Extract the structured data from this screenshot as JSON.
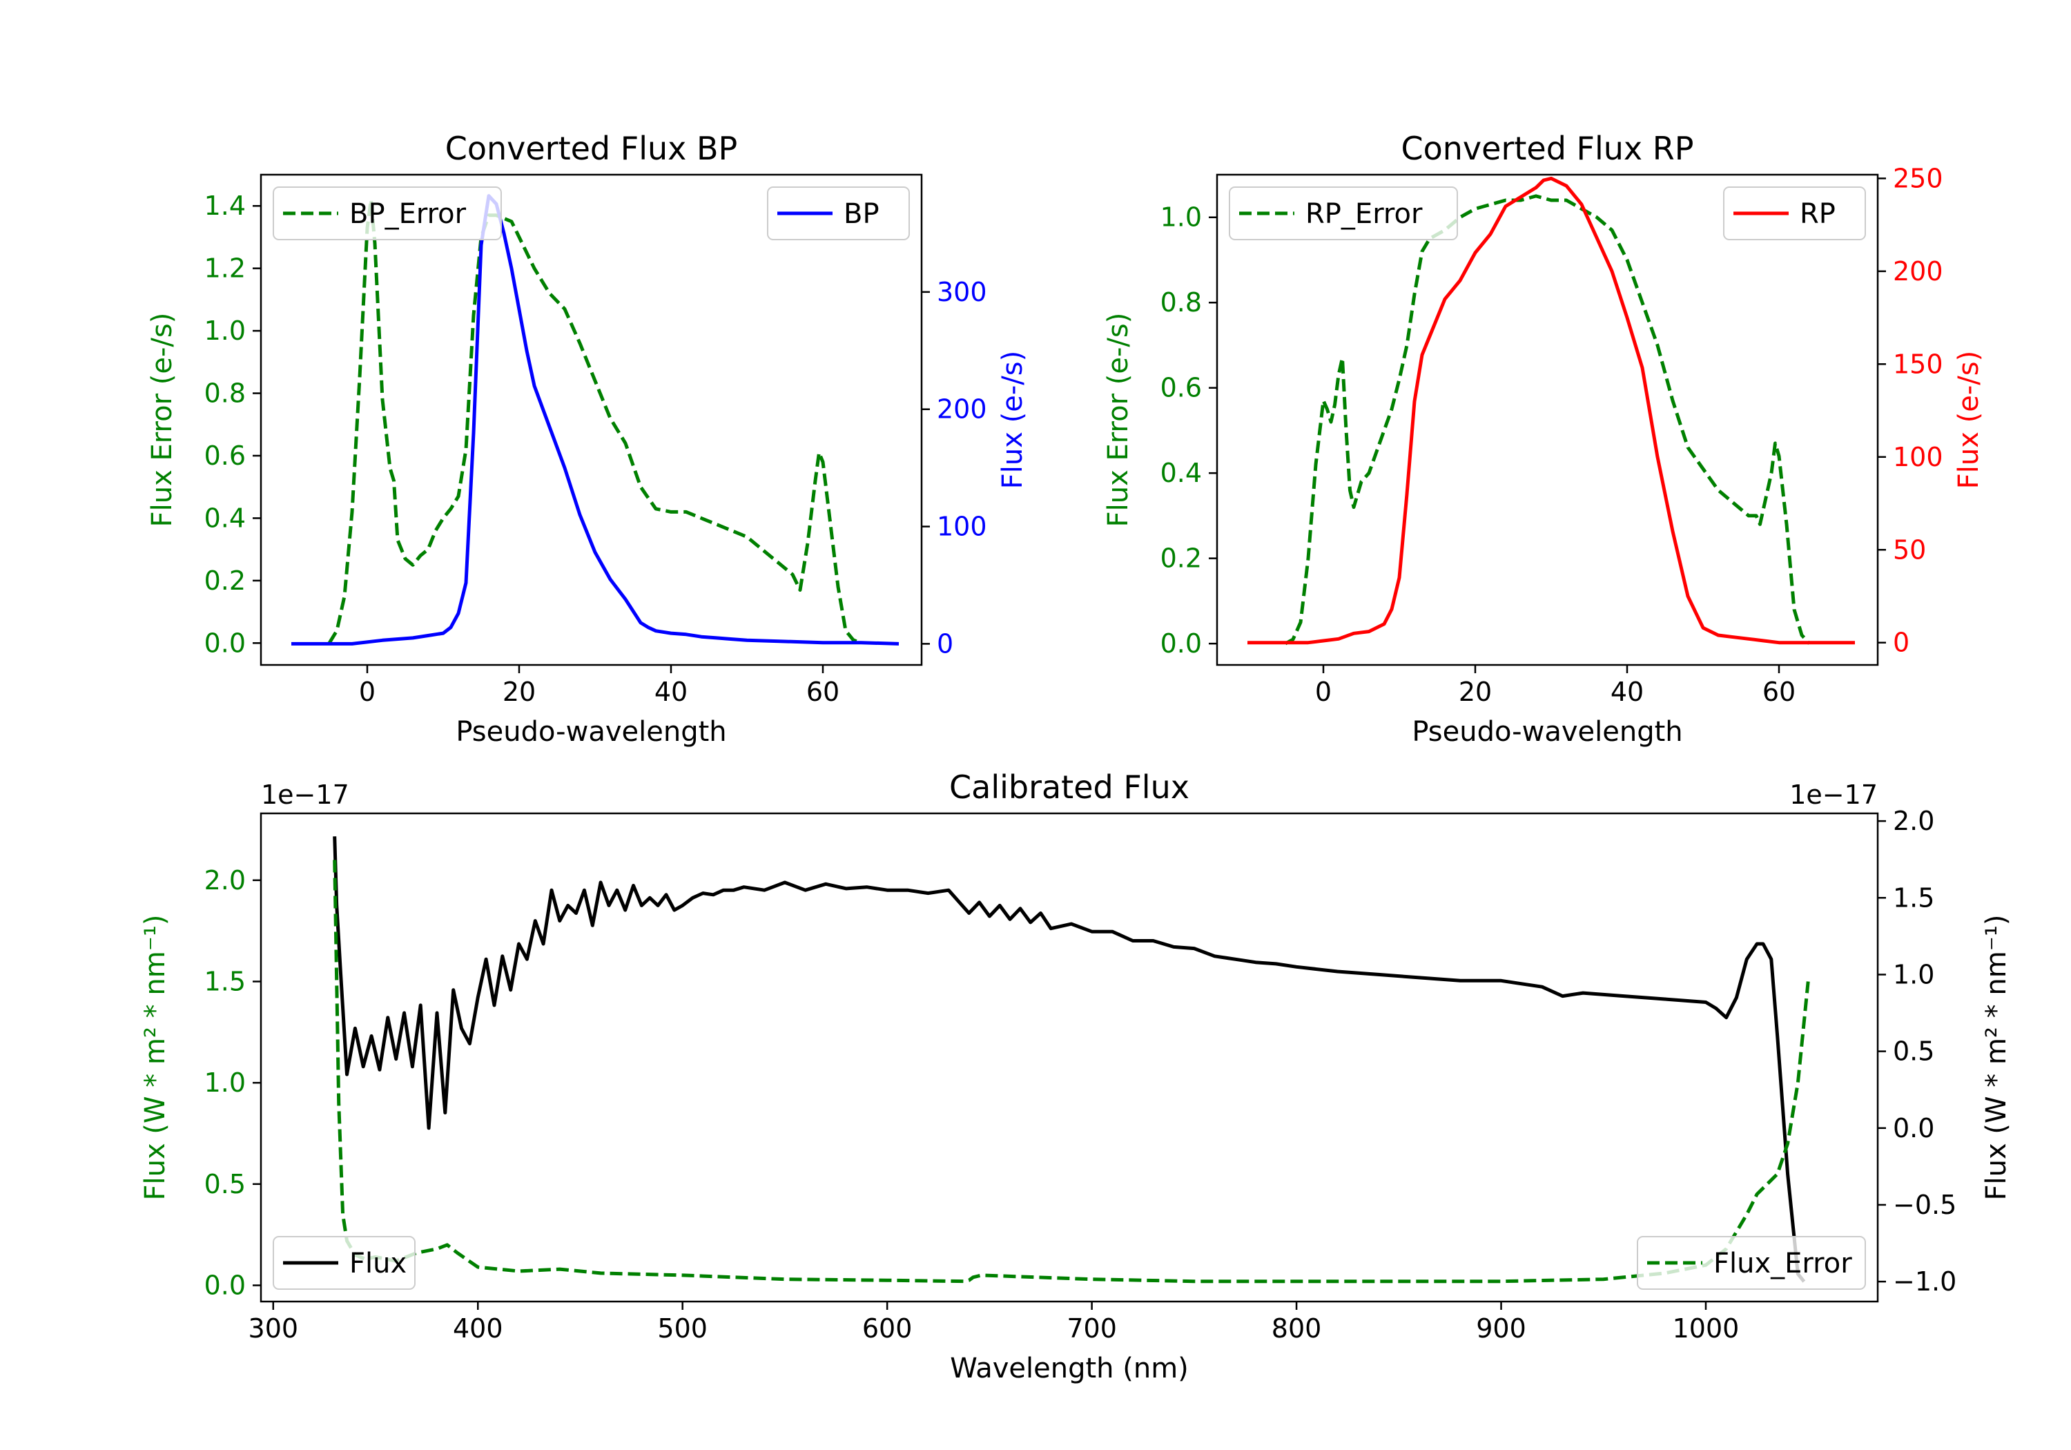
{
  "colors": {
    "error": "#008000",
    "bp": "#0000ff",
    "rp": "#ff0000",
    "flux": "#000000",
    "axis": "#000000"
  },
  "chart_data": [
    {
      "id": "bp",
      "type": "line",
      "title": "Converted Flux BP",
      "xlabel": "Pseudo-wavelength",
      "xlim": [
        -14,
        73
      ],
      "xticks": [
        0,
        20,
        40,
        60
      ],
      "left_axis": {
        "label": "Flux Error (e-/s)",
        "lim": [
          -0.07,
          1.5
        ],
        "ticks": [
          0.0,
          0.2,
          0.4,
          0.6,
          0.8,
          1.0,
          1.2,
          1.4
        ],
        "tick_labels": [
          "0.0",
          "0.2",
          "0.4",
          "0.6",
          "0.8",
          "1.0",
          "1.2",
          "1.4"
        ]
      },
      "right_axis": {
        "label": "Flux (e-/s)",
        "lim": [
          -18,
          400
        ],
        "ticks": [
          0,
          100,
          200,
          300
        ],
        "tick_labels": [
          "0",
          "100",
          "200",
          "300"
        ]
      },
      "series": [
        {
          "name": "BP_Error",
          "axis": "left",
          "style": "dashed",
          "color": "#008000",
          "x": [
            -5,
            -4,
            -3,
            -2,
            -1,
            0,
            0.5,
            1,
            2,
            3,
            3.5,
            4,
            5,
            6,
            7,
            8,
            9,
            10,
            11,
            12,
            13,
            14,
            15,
            16,
            17,
            18,
            19,
            20,
            22,
            24,
            26,
            28,
            30,
            32,
            34,
            36,
            38,
            40,
            42,
            44,
            46,
            48,
            50,
            52,
            54,
            56,
            57,
            58,
            59,
            59.5,
            60,
            61,
            62,
            63,
            64,
            65
          ],
          "y": [
            0.0,
            0.04,
            0.15,
            0.42,
            0.85,
            1.33,
            1.42,
            1.28,
            0.78,
            0.56,
            0.52,
            0.33,
            0.27,
            0.25,
            0.28,
            0.3,
            0.36,
            0.4,
            0.43,
            0.47,
            0.62,
            1.05,
            1.3,
            1.37,
            1.37,
            1.36,
            1.35,
            1.3,
            1.2,
            1.12,
            1.07,
            0.96,
            0.84,
            0.72,
            0.64,
            0.5,
            0.43,
            0.42,
            0.42,
            0.4,
            0.38,
            0.36,
            0.34,
            0.3,
            0.26,
            0.22,
            0.17,
            0.32,
            0.52,
            0.61,
            0.58,
            0.38,
            0.18,
            0.04,
            0.01,
            0.0
          ]
        },
        {
          "name": "BP",
          "axis": "right",
          "style": "solid",
          "color": "#0000ff",
          "x": [
            -10,
            -6,
            -2,
            2,
            6,
            8,
            10,
            11,
            12,
            13,
            14,
            15,
            16,
            17,
            18,
            19,
            20,
            21,
            22,
            24,
            26,
            28,
            30,
            32,
            34,
            36,
            37,
            38,
            40,
            42,
            44,
            46,
            48,
            50,
            55,
            60,
            65,
            70
          ],
          "y": [
            0,
            0,
            0,
            3,
            5,
            7,
            9,
            14,
            26,
            52,
            180,
            340,
            382,
            375,
            350,
            320,
            285,
            250,
            220,
            185,
            150,
            110,
            78,
            55,
            38,
            18,
            14,
            11,
            9,
            8,
            6,
            5,
            4,
            3,
            2,
            1,
            1,
            0
          ]
        }
      ],
      "legends": [
        {
          "label": "BP_Error",
          "position": "upper left",
          "style": "dashed",
          "color": "#008000"
        },
        {
          "label": "BP",
          "position": "upper right",
          "style": "solid",
          "color": "#0000ff"
        }
      ]
    },
    {
      "id": "rp",
      "type": "line",
      "title": "Converted Flux RP",
      "xlabel": "Pseudo-wavelength",
      "xlim": [
        -14,
        73
      ],
      "xticks": [
        0,
        20,
        40,
        60
      ],
      "left_axis": {
        "label": "Flux Error (e-/s)",
        "lim": [
          -0.05,
          1.1
        ],
        "ticks": [
          0.0,
          0.2,
          0.4,
          0.6,
          0.8,
          1.0
        ],
        "tick_labels": [
          "0.0",
          "0.2",
          "0.4",
          "0.6",
          "0.8",
          "1.0"
        ]
      },
      "right_axis": {
        "label": "Flux (e-/s)",
        "lim": [
          -12,
          252
        ],
        "ticks": [
          0,
          50,
          100,
          150,
          200,
          250
        ],
        "tick_labels": [
          "0",
          "50",
          "100",
          "150",
          "200",
          "250"
        ]
      },
      "series": [
        {
          "name": "RP_Error",
          "axis": "left",
          "style": "dashed",
          "color": "#008000",
          "x": [
            -5,
            -4,
            -3,
            -2,
            -1,
            0,
            0.5,
            1,
            1.5,
            2,
            2.5,
            3,
            3.5,
            4,
            5,
            6,
            7,
            8,
            9,
            10,
            11,
            12,
            13,
            14,
            16,
            18,
            20,
            22,
            24,
            26,
            28,
            30,
            32,
            34,
            36,
            38,
            40,
            42,
            44,
            46,
            48,
            50,
            52,
            54,
            56,
            57,
            57.5,
            58,
            59,
            59.5,
            60,
            61,
            62,
            63,
            64
          ],
          "y": [
            0.0,
            0.01,
            0.05,
            0.2,
            0.42,
            0.57,
            0.55,
            0.52,
            0.56,
            0.63,
            0.67,
            0.5,
            0.36,
            0.32,
            0.38,
            0.4,
            0.45,
            0.5,
            0.55,
            0.62,
            0.7,
            0.82,
            0.92,
            0.95,
            0.97,
            1.0,
            1.02,
            1.03,
            1.04,
            1.04,
            1.05,
            1.04,
            1.04,
            1.02,
            1.0,
            0.97,
            0.9,
            0.8,
            0.7,
            0.57,
            0.46,
            0.41,
            0.36,
            0.33,
            0.3,
            0.3,
            0.28,
            0.32,
            0.4,
            0.47,
            0.44,
            0.28,
            0.08,
            0.02,
            0.0
          ]
        },
        {
          "name": "RP",
          "axis": "right",
          "style": "solid",
          "color": "#ff0000",
          "x": [
            -10,
            -6,
            -2,
            0,
            2,
            4,
            6,
            8,
            9,
            10,
            11,
            12,
            13,
            14,
            16,
            18,
            20,
            22,
            24,
            26,
            28,
            29,
            30,
            31,
            32,
            34,
            36,
            38,
            40,
            42,
            44,
            46,
            48,
            50,
            52,
            54,
            56,
            58,
            60,
            62,
            65,
            70
          ],
          "y": [
            0,
            0,
            0,
            1,
            2,
            5,
            6,
            10,
            18,
            35,
            80,
            130,
            155,
            165,
            185,
            195,
            210,
            220,
            235,
            240,
            245,
            249,
            250,
            248,
            246,
            236,
            218,
            200,
            175,
            148,
            100,
            60,
            25,
            8,
            4,
            3,
            2,
            1,
            0,
            0,
            0,
            0
          ]
        }
      ],
      "legends": [
        {
          "label": "RP_Error",
          "position": "upper left",
          "style": "dashed",
          "color": "#008000"
        },
        {
          "label": "RP",
          "position": "upper right",
          "style": "solid",
          "color": "#ff0000"
        }
      ]
    },
    {
      "id": "cal",
      "type": "line",
      "title": "Calibrated Flux",
      "xlabel": "Wavelength (nm)",
      "xlim": [
        294,
        1084
      ],
      "xticks": [
        300,
        400,
        500,
        600,
        700,
        800,
        900,
        1000
      ],
      "left_axis": {
        "label": "Flux (W * m² * nm⁻¹)",
        "offset_text": "1e−17",
        "lim": [
          -0.08,
          2.33
        ],
        "ticks": [
          0.0,
          0.5,
          1.0,
          1.5,
          2.0
        ],
        "tick_labels": [
          "0.0",
          "0.5",
          "1.0",
          "1.5",
          "2.0"
        ]
      },
      "right_axis": {
        "label": "Flux (W * m² * nm⁻¹)",
        "offset_text": "1e−17",
        "lim": [
          -1.13,
          2.05
        ],
        "ticks": [
          -1.0,
          -0.5,
          0.0,
          0.5,
          1.0,
          1.5,
          2.0
        ],
        "tick_labels": [
          "−1.0",
          "−0.5",
          "0.0",
          "0.5",
          "1.0",
          "1.5",
          "2.0"
        ]
      },
      "series": [
        {
          "name": "Flux",
          "axis": "right",
          "style": "solid",
          "color": "#000000",
          "x": [
            330,
            331,
            333,
            336,
            340,
            344,
            348,
            352,
            356,
            360,
            364,
            368,
            372,
            376,
            380,
            384,
            388,
            392,
            396,
            400,
            404,
            408,
            412,
            416,
            420,
            424,
            428,
            432,
            436,
            440,
            444,
            448,
            452,
            456,
            460,
            464,
            468,
            472,
            476,
            480,
            484,
            488,
            492,
            496,
            500,
            505,
            510,
            515,
            520,
            525,
            530,
            540,
            550,
            560,
            570,
            580,
            590,
            600,
            610,
            620,
            630,
            640,
            645,
            650,
            655,
            660,
            665,
            670,
            675,
            680,
            690,
            700,
            710,
            720,
            730,
            740,
            750,
            760,
            770,
            780,
            790,
            800,
            820,
            840,
            860,
            880,
            900,
            910,
            920,
            930,
            940,
            960,
            980,
            1000,
            1005,
            1010,
            1015,
            1020,
            1025,
            1028,
            1032,
            1035,
            1040,
            1045,
            1048
          ],
          "y": [
            1.9,
            1.45,
            1.0,
            0.35,
            0.65,
            0.4,
            0.6,
            0.38,
            0.72,
            0.45,
            0.75,
            0.4,
            0.8,
            0.0,
            0.75,
            0.1,
            0.9,
            0.65,
            0.55,
            0.85,
            1.1,
            0.8,
            1.12,
            0.9,
            1.2,
            1.1,
            1.35,
            1.2,
            1.55,
            1.35,
            1.45,
            1.4,
            1.55,
            1.32,
            1.6,
            1.45,
            1.55,
            1.42,
            1.58,
            1.45,
            1.5,
            1.45,
            1.52,
            1.42,
            1.45,
            1.5,
            1.53,
            1.52,
            1.55,
            1.55,
            1.57,
            1.55,
            1.6,
            1.55,
            1.59,
            1.56,
            1.57,
            1.55,
            1.55,
            1.53,
            1.55,
            1.4,
            1.47,
            1.38,
            1.45,
            1.36,
            1.43,
            1.34,
            1.4,
            1.3,
            1.33,
            1.28,
            1.28,
            1.22,
            1.22,
            1.18,
            1.17,
            1.12,
            1.1,
            1.08,
            1.07,
            1.05,
            1.02,
            1.0,
            0.98,
            0.96,
            0.96,
            0.94,
            0.92,
            0.86,
            0.88,
            0.86,
            0.84,
            0.82,
            0.78,
            0.72,
            0.85,
            1.1,
            1.2,
            1.2,
            1.1,
            0.6,
            -0.3,
            -0.95,
            -1.0
          ]
        },
        {
          "name": "Flux_Error",
          "axis": "left",
          "style": "dashed",
          "color": "#008000",
          "x": [
            330,
            331,
            332,
            334,
            336,
            340,
            345,
            350,
            360,
            370,
            380,
            385,
            390,
            400,
            420,
            440,
            460,
            500,
            550,
            600,
            638,
            640,
            642,
            646,
            700,
            750,
            800,
            850,
            900,
            950,
            980,
            1000,
            1010,
            1020,
            1025,
            1030,
            1035,
            1040,
            1045,
            1050
          ],
          "y": [
            2.1,
            1.5,
            0.9,
            0.35,
            0.22,
            0.15,
            0.13,
            0.14,
            0.12,
            0.16,
            0.18,
            0.2,
            0.16,
            0.09,
            0.07,
            0.08,
            0.06,
            0.05,
            0.03,
            0.025,
            0.02,
            0.025,
            0.04,
            0.05,
            0.03,
            0.02,
            0.02,
            0.02,
            0.02,
            0.03,
            0.06,
            0.1,
            0.18,
            0.35,
            0.45,
            0.5,
            0.55,
            0.7,
            1.0,
            1.5
          ]
        }
      ],
      "legends": [
        {
          "label": "Flux",
          "position": "lower left",
          "style": "solid",
          "color": "#000000"
        },
        {
          "label": "Flux_Error",
          "position": "lower right",
          "style": "dashed",
          "color": "#008000"
        }
      ]
    }
  ]
}
